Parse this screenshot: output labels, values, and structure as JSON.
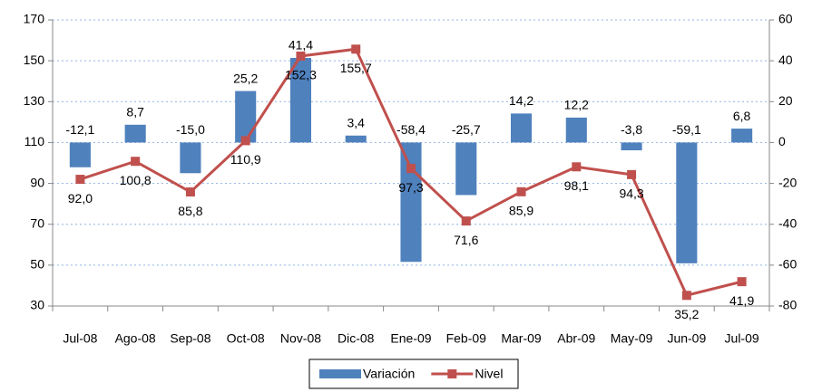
{
  "chart_data": {
    "type": "combo",
    "categories": [
      "Jul-08",
      "Ago-08",
      "Sep-08",
      "Oct-08",
      "Nov-08",
      "Dic-08",
      "Ene-09",
      "Feb-09",
      "Mar-09",
      "Abr-09",
      "May-09",
      "Jun-09",
      "Jul-09"
    ],
    "series": [
      {
        "name": "Variación",
        "type": "bar",
        "axis": "y2",
        "color": "#4f81bd",
        "values": [
          -12.1,
          8.7,
          -15.0,
          25.2,
          41.4,
          3.4,
          -58.4,
          -25.7,
          14.2,
          12.2,
          -3.8,
          -59.1,
          6.8
        ],
        "value_labels": [
          "-12,1",
          "8,7",
          "-15,0",
          "25,2",
          "41,4",
          "3,4",
          "-58,4",
          "-25,7",
          "14,2",
          "12,2",
          "-3,8",
          "-59,1",
          "6,8"
        ]
      },
      {
        "name": "Nivel",
        "type": "line",
        "color": "#c0504d",
        "values": [
          92.0,
          100.8,
          85.8,
          110.9,
          152.3,
          155.7,
          97.3,
          71.6,
          85.9,
          98.1,
          94.3,
          35.2,
          41.9
        ],
        "value_labels": [
          "92,0",
          "100,8",
          "85,8",
          "110,9",
          "152,3",
          "155,7",
          "97,3",
          "71,6",
          "85,9",
          "98,1",
          "94,3",
          "35,2",
          "41,9"
        ]
      }
    ],
    "ylim": [
      30,
      170
    ],
    "yticks": [
      30,
      50,
      70,
      90,
      110,
      130,
      150,
      170
    ],
    "y2lim": [
      -80,
      60
    ],
    "y2ticks": [
      -80,
      -60,
      -40,
      -20,
      0,
      20,
      40,
      60
    ],
    "grid": true,
    "legend": "bottom"
  }
}
